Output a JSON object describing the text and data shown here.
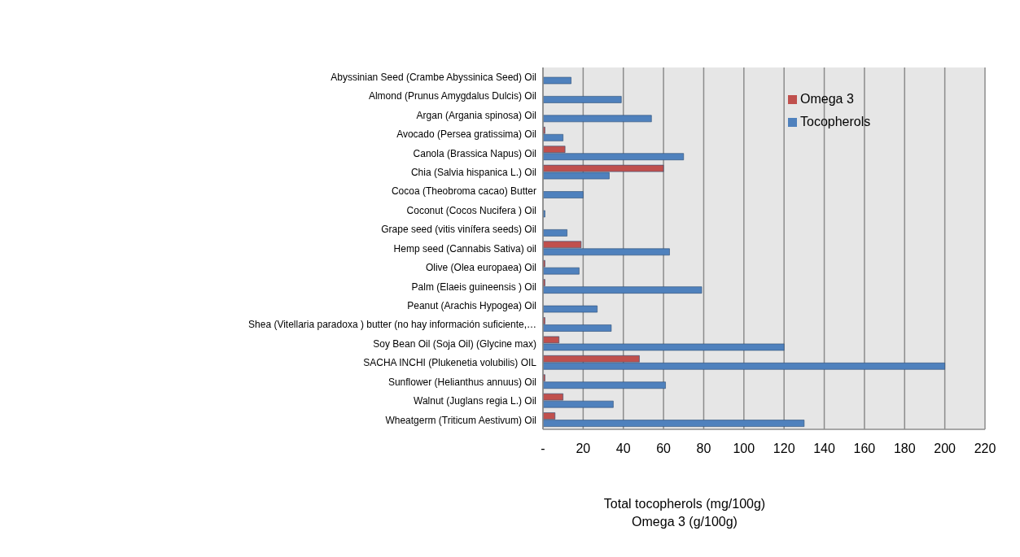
{
  "chart_data": {
    "type": "bar",
    "orientation": "horizontal",
    "xlabel": "Total  tocopherols (mg/100g)\nOmega 3 (g/100g)",
    "categories": [
      "Abyssinian Seed (Crambe Abyssinica Seed) Oil",
      "Almond (Prunus Amygdalus Dulcis) Oil",
      "Argan (Argania spinosa) Oil",
      "Avocado (Persea gratissima) Oil",
      "Canola (Brassica Napus) Oil",
      "Chia (Salvia hispanica L.) Oil",
      "Cocoa (Theobroma cacao) Butter",
      "Coconut (Cocos Nucifera ) Oil",
      "Grape seed (vitis vinífera seeds) Oil",
      "Hemp seed (Cannabis Sativa) oil",
      "Olive (Olea europaea) Oil",
      "Palm (Elaeis guineensis ) Oil",
      "Peanut (Arachis Hypogea) Oil",
      "Shea (Vitellaria paradoxa ) butter (no hay información suficiente,…",
      "Soy Bean Oil (Soja Oil) (Glycine max)",
      "SACHA INCHI (Plukenetia volubilis) OIL",
      "Sunflower  (Helianthus annuus) Oil",
      "Walnut (Juglans regia L.) Oil",
      "Wheatgerm (Triticum Aestivum) Oil"
    ],
    "series": [
      {
        "name": "Omega 3",
        "color": "#c0504d",
        "values": [
          null,
          null,
          null,
          1,
          11,
          60,
          null,
          null,
          null,
          19,
          1,
          1,
          null,
          1,
          8,
          48,
          1,
          10,
          6
        ]
      },
      {
        "name": "Tocopherols",
        "color": "#4f81bd",
        "values": [
          14,
          39,
          54,
          10,
          70,
          33,
          20,
          1,
          12,
          63,
          18,
          79,
          27,
          34,
          120,
          200,
          61,
          35,
          130
        ]
      }
    ],
    "xlim": [
      0,
      220
    ],
    "xticks": [
      {
        "value": 0,
        "label": "-"
      },
      20,
      40,
      60,
      80,
      100,
      120,
      140,
      160,
      180,
      200,
      220
    ],
    "grid": "x",
    "legend": "top right"
  }
}
